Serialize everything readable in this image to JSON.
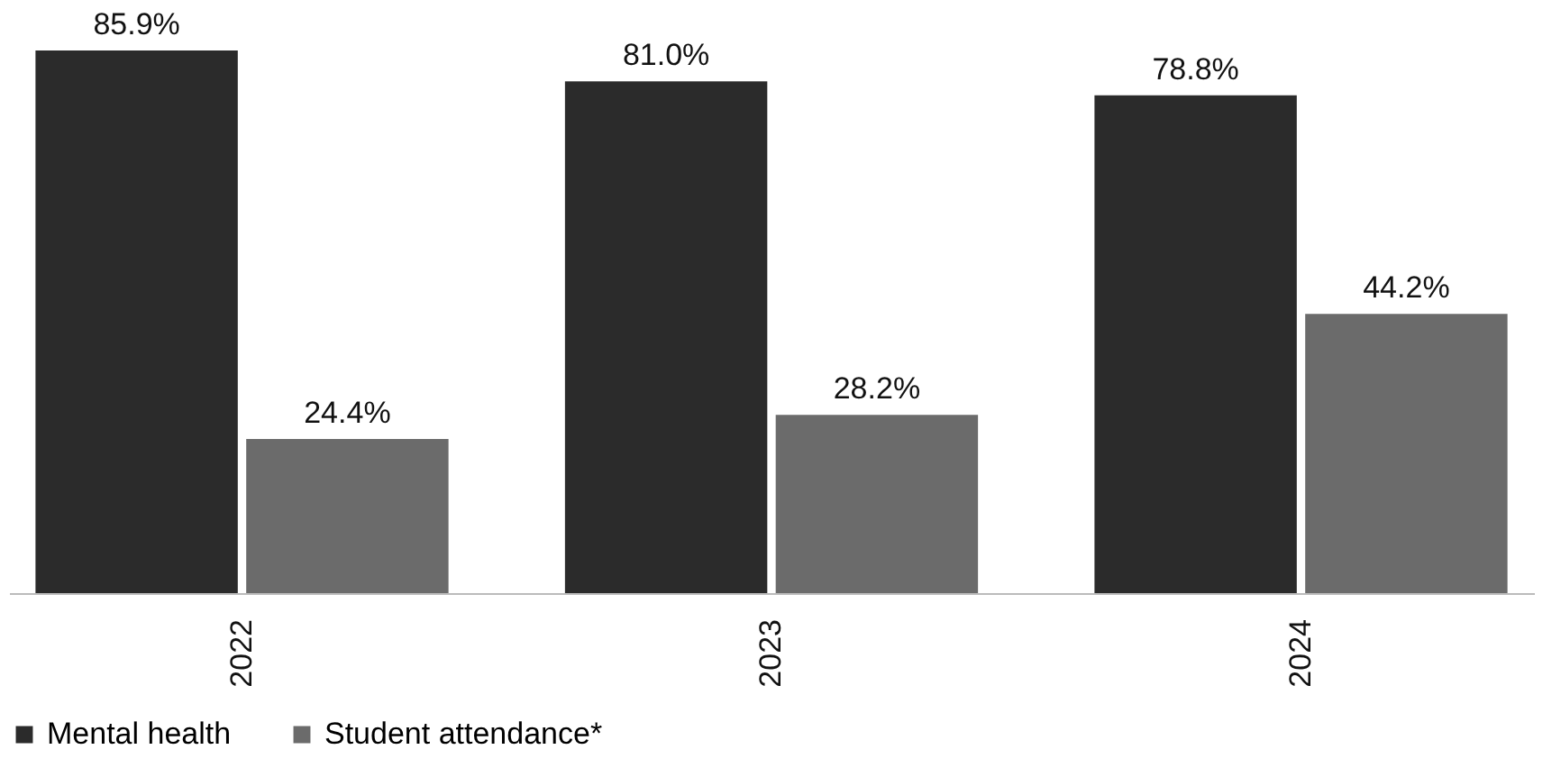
{
  "chart_data": {
    "type": "bar",
    "categories": [
      "2022",
      "2023",
      "2024"
    ],
    "series": [
      {
        "name": "Mental health",
        "color": "#2b2b2b",
        "values": [
          85.9,
          81.0,
          78.8
        ],
        "value_labels": [
          "85.9%",
          "81.0%",
          "78.8%"
        ]
      },
      {
        "name": "Student attendance*",
        "color": "#6b6b6b",
        "values": [
          24.4,
          28.2,
          44.2
        ],
        "value_labels": [
          "24.4%",
          "28.2%",
          "44.2%"
        ]
      }
    ],
    "legend": "bottom"
  }
}
